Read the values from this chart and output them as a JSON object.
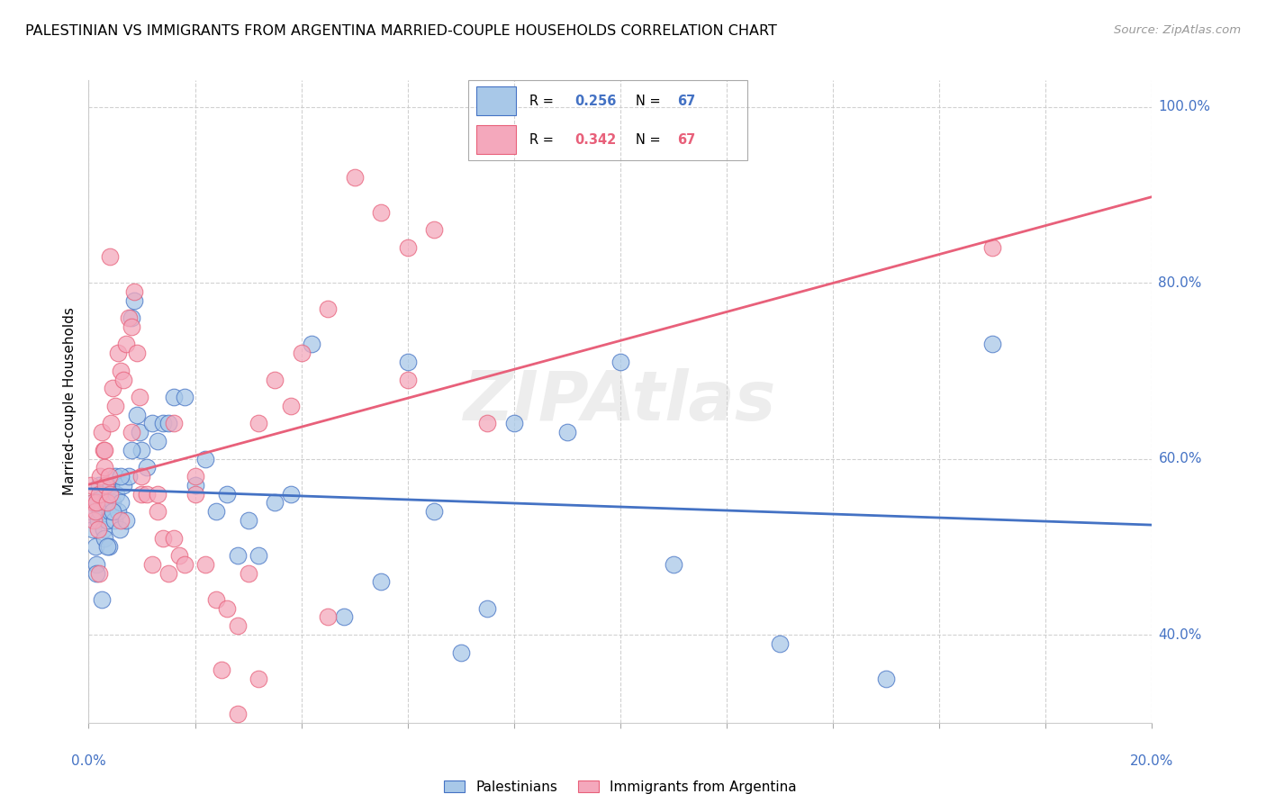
{
  "title": "PALESTINIAN VS IMMIGRANTS FROM ARGENTINA MARRIED-COUPLE HOUSEHOLDS CORRELATION CHART",
  "source": "Source: ZipAtlas.com",
  "ylabel": "Married-couple Households",
  "legend_labels": [
    "Palestinians",
    "Immigrants from Argentina"
  ],
  "R_blue": 0.256,
  "N_blue": 67,
  "R_pink": 0.342,
  "N_pink": 67,
  "blue_color": "#A8C8E8",
  "pink_color": "#F4A8BC",
  "blue_line_color": "#4472C4",
  "pink_line_color": "#E8607A",
  "watermark": "ZIPAtlas",
  "xlim": [
    0.0,
    20.0
  ],
  "ylim": [
    30.0,
    103.0
  ],
  "blue_x": [
    0.05,
    0.08,
    0.1,
    0.12,
    0.15,
    0.18,
    0.2,
    0.22,
    0.25,
    0.28,
    0.3,
    0.32,
    0.35,
    0.38,
    0.4,
    0.42,
    0.45,
    0.48,
    0.5,
    0.52,
    0.55,
    0.58,
    0.6,
    0.65,
    0.7,
    0.75,
    0.8,
    0.85,
    0.9,
    0.95,
    1.0,
    1.1,
    1.2,
    1.3,
    1.4,
    1.5,
    1.6,
    1.8,
    2.0,
    2.2,
    2.4,
    2.6,
    2.8,
    3.0,
    3.2,
    3.5,
    3.8,
    4.2,
    4.8,
    5.5,
    6.0,
    6.5,
    7.0,
    7.5,
    8.0,
    9.0,
    10.0,
    11.0,
    13.0,
    15.0,
    0.15,
    0.25,
    0.35,
    0.45,
    0.6,
    0.8,
    17.0
  ],
  "blue_y": [
    54.0,
    52.0,
    55.0,
    50.0,
    48.0,
    53.0,
    57.0,
    54.0,
    56.0,
    52.0,
    51.0,
    55.0,
    53.0,
    50.0,
    54.0,
    57.0,
    55.0,
    53.0,
    58.0,
    56.0,
    54.0,
    52.0,
    55.0,
    57.0,
    53.0,
    58.0,
    76.0,
    78.0,
    65.0,
    63.0,
    61.0,
    59.0,
    64.0,
    62.0,
    64.0,
    64.0,
    67.0,
    67.0,
    57.0,
    60.0,
    54.0,
    56.0,
    49.0,
    53.0,
    49.0,
    55.0,
    56.0,
    73.0,
    42.0,
    46.0,
    71.0,
    54.0,
    38.0,
    43.0,
    64.0,
    63.0,
    71.0,
    48.0,
    39.0,
    35.0,
    47.0,
    44.0,
    50.0,
    54.0,
    58.0,
    61.0,
    73.0
  ],
  "pink_x": [
    0.05,
    0.08,
    0.1,
    0.12,
    0.15,
    0.18,
    0.2,
    0.22,
    0.25,
    0.28,
    0.3,
    0.32,
    0.35,
    0.38,
    0.4,
    0.42,
    0.45,
    0.5,
    0.55,
    0.6,
    0.65,
    0.7,
    0.75,
    0.8,
    0.85,
    0.9,
    0.95,
    1.0,
    1.1,
    1.2,
    1.3,
    1.4,
    1.5,
    1.6,
    1.7,
    1.8,
    2.0,
    2.2,
    2.4,
    2.6,
    2.8,
    3.0,
    3.2,
    3.5,
    3.8,
    4.0,
    4.5,
    5.0,
    5.5,
    6.0,
    6.5,
    0.2,
    0.3,
    0.4,
    0.6,
    0.8,
    1.0,
    1.3,
    1.6,
    2.0,
    2.5,
    2.8,
    3.2,
    4.5,
    6.0,
    17.0,
    7.5
  ],
  "pink_y": [
    57.0,
    55.0,
    53.0,
    54.0,
    55.0,
    52.0,
    56.0,
    58.0,
    63.0,
    61.0,
    59.0,
    57.0,
    55.0,
    58.0,
    83.0,
    64.0,
    68.0,
    66.0,
    72.0,
    70.0,
    69.0,
    73.0,
    76.0,
    75.0,
    79.0,
    72.0,
    67.0,
    56.0,
    56.0,
    48.0,
    54.0,
    51.0,
    47.0,
    51.0,
    49.0,
    48.0,
    56.0,
    48.0,
    44.0,
    43.0,
    41.0,
    47.0,
    64.0,
    69.0,
    66.0,
    72.0,
    77.0,
    92.0,
    88.0,
    84.0,
    86.0,
    47.0,
    61.0,
    56.0,
    53.0,
    63.0,
    58.0,
    56.0,
    64.0,
    58.0,
    36.0,
    31.0,
    35.0,
    42.0,
    69.0,
    84.0,
    64.0
  ]
}
